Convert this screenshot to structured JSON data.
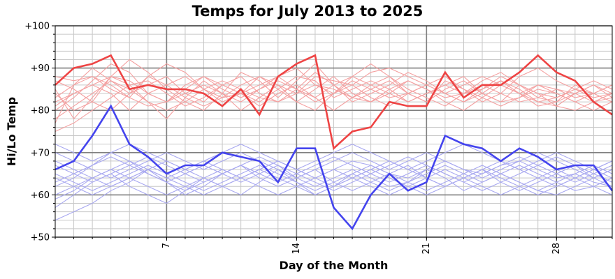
{
  "chart_data": {
    "type": "line",
    "title": "Temps for July 2013 to 2025",
    "xlabel": "Day of the Month",
    "ylabel": "Hi/Lo Temp",
    "xlim": [
      1,
      31
    ],
    "ylim": [
      50,
      100
    ],
    "x_ticks": [
      {
        "value": 7,
        "label": "7"
      },
      {
        "value": 14,
        "label": "14"
      },
      {
        "value": 21,
        "label": "21"
      },
      {
        "value": 28,
        "label": "28"
      }
    ],
    "y_ticks": [
      {
        "value": 50,
        "label": "+50"
      },
      {
        "value": 60,
        "label": "+60"
      },
      {
        "value": 70,
        "label": "+70"
      },
      {
        "value": 80,
        "label": "+80"
      },
      {
        "value": 90,
        "label": "+90"
      },
      {
        "value": 100,
        "label": "+100"
      }
    ],
    "grid": true,
    "colors": {
      "highlight_high": "#ee4444",
      "highlight_low": "#4444ee",
      "background_high": "#f4a0a0",
      "background_low": "#a8a8f0",
      "major_grid": "#808080",
      "minor_grid": "#c8c8c8"
    },
    "x": [
      1,
      2,
      3,
      4,
      5,
      6,
      7,
      8,
      9,
      10,
      11,
      12,
      13,
      14,
      15,
      16,
      17,
      18,
      19,
      20,
      21,
      22,
      23,
      24,
      25,
      26,
      27,
      28,
      29,
      30,
      31
    ],
    "series": [
      {
        "role": "highlight-high",
        "values": [
          86,
          90,
          91,
          93,
          85,
          86,
          85,
          85,
          84,
          81,
          85,
          79,
          88,
          91,
          93,
          71,
          75,
          76,
          82,
          81,
          81,
          89,
          83,
          86,
          86,
          89,
          93,
          89,
          87,
          82,
          79
        ]
      },
      {
        "role": "highlight-low",
        "values": [
          66,
          68,
          74,
          81,
          72,
          69,
          65,
          67,
          67,
          70,
          69,
          68,
          63,
          71,
          71,
          57,
          52,
          60,
          65,
          61,
          63,
          74,
          72,
          71,
          68,
          71,
          69,
          66,
          67,
          67,
          61
        ]
      },
      {
        "role": "background-high",
        "values": [
          88,
          87,
          88,
          85,
          83,
          88,
          91,
          89,
          85,
          82,
          84,
          88,
          86,
          84,
          88,
          87,
          86,
          89,
          90,
          88,
          86,
          84,
          86,
          88,
          86,
          84,
          86,
          85,
          83,
          84,
          86
        ]
      },
      {
        "role": "background-high",
        "values": [
          84,
          80,
          82,
          88,
          92,
          89,
          85,
          82,
          80,
          84,
          89,
          87,
          83,
          87,
          91,
          86,
          83,
          85,
          87,
          84,
          82,
          87,
          85,
          82,
          84,
          88,
          90,
          87,
          85,
          83,
          84
        ]
      },
      {
        "role": "background-high",
        "values": [
          80,
          83,
          87,
          91,
          89,
          84,
          82,
          86,
          88,
          85,
          83,
          85,
          88,
          90,
          86,
          84,
          88,
          91,
          88,
          85,
          83,
          81,
          84,
          87,
          89,
          86,
          84,
          83,
          85,
          87,
          85
        ]
      },
      {
        "role": "background-high",
        "values": [
          77,
          86,
          90,
          87,
          84,
          86,
          88,
          84,
          82,
          86,
          88,
          84,
          82,
          85,
          89,
          86,
          82,
          84,
          86,
          89,
          87,
          84,
          82,
          85,
          88,
          86,
          83,
          82,
          84,
          86,
          83
        ]
      },
      {
        "role": "background-high",
        "values": [
          82,
          84,
          86,
          84,
          80,
          84,
          86,
          88,
          85,
          83,
          84,
          82,
          85,
          88,
          87,
          83,
          85,
          87,
          85,
          82,
          84,
          86,
          88,
          84,
          82,
          83,
          86,
          84,
          82,
          80,
          82
        ]
      },
      {
        "role": "background-high",
        "values": [
          85,
          78,
          83,
          88,
          86,
          82,
          78,
          83,
          87,
          84,
          80,
          83,
          86,
          82,
          85,
          88,
          84,
          82,
          84,
          87,
          85,
          82,
          80,
          83,
          86,
          84,
          81,
          82,
          86,
          84,
          82
        ]
      },
      {
        "role": "background-high",
        "values": [
          75,
          77,
          80,
          83,
          86,
          87,
          84,
          81,
          83,
          86,
          84,
          81,
          84,
          86,
          83,
          80,
          83,
          86,
          88,
          84,
          82,
          85,
          87,
          84,
          82,
          86,
          84,
          81,
          80,
          82,
          84
        ]
      },
      {
        "role": "background-high",
        "values": [
          83,
          86,
          88,
          86,
          83,
          81,
          82,
          85,
          88,
          86,
          84,
          86,
          88,
          85,
          82,
          84,
          86,
          83,
          81,
          84,
          86,
          88,
          85,
          83,
          81,
          83,
          85,
          84,
          82,
          84,
          86
        ]
      },
      {
        "role": "background-high",
        "values": [
          78,
          81,
          84,
          87,
          85,
          82,
          80,
          82,
          85,
          87,
          85,
          83,
          82,
          84,
          86,
          85,
          83,
          82,
          85,
          87,
          85,
          83,
          84,
          86,
          84,
          82,
          83,
          85,
          84,
          82,
          83
        ]
      },
      {
        "role": "background-high",
        "values": [
          87,
          85,
          82,
          80,
          84,
          88,
          86,
          83,
          81,
          83,
          86,
          88,
          85,
          82,
          80,
          84,
          87,
          85,
          83,
          84,
          86,
          84,
          82,
          84,
          87,
          85,
          82,
          81,
          84,
          86,
          84
        ]
      },
      {
        "role": "background-high",
        "values": [
          81,
          84,
          86,
          88,
          87,
          84,
          82,
          84,
          86,
          84,
          82,
          85,
          87,
          85,
          83,
          86,
          88,
          86,
          84,
          82,
          84,
          86,
          84,
          85,
          87,
          84,
          82,
          83,
          85,
          84,
          82
        ]
      },
      {
        "role": "background-low",
        "values": [
          62,
          64,
          67,
          70,
          68,
          66,
          64,
          66,
          68,
          66,
          64,
          66,
          68,
          66,
          64,
          66,
          68,
          67,
          65,
          64,
          66,
          68,
          66,
          65,
          67,
          68,
          66,
          64,
          65,
          63,
          62
        ]
      },
      {
        "role": "background-low",
        "values": [
          59,
          61,
          64,
          66,
          68,
          65,
          63,
          65,
          67,
          65,
          63,
          65,
          67,
          64,
          62,
          64,
          66,
          64,
          62,
          63,
          65,
          67,
          65,
          63,
          65,
          67,
          65,
          63,
          61,
          62,
          64
        ]
      },
      {
        "role": "background-low",
        "values": [
          67,
          65,
          63,
          65,
          67,
          69,
          67,
          65,
          63,
          65,
          67,
          65,
          63,
          65,
          67,
          69,
          67,
          65,
          63,
          65,
          67,
          65,
          63,
          65,
          67,
          69,
          67,
          65,
          63,
          65,
          67
        ]
      },
      {
        "role": "background-low",
        "values": [
          70,
          68,
          66,
          64,
          66,
          68,
          70,
          68,
          66,
          68,
          70,
          68,
          66,
          64,
          66,
          68,
          70,
          68,
          66,
          68,
          70,
          68,
          66,
          64,
          66,
          68,
          70,
          68,
          66,
          64,
          66
        ]
      },
      {
        "role": "background-low",
        "values": [
          63,
          65,
          67,
          69,
          67,
          65,
          63,
          61,
          63,
          65,
          67,
          69,
          67,
          65,
          63,
          61,
          63,
          65,
          67,
          69,
          67,
          65,
          63,
          61,
          63,
          65,
          67,
          69,
          67,
          65,
          63
        ]
      },
      {
        "role": "background-low",
        "values": [
          57,
          60,
          63,
          65,
          62,
          60,
          58,
          61,
          64,
          62,
          60,
          63,
          66,
          63,
          60,
          62,
          65,
          63,
          61,
          63,
          66,
          64,
          61,
          63,
          65,
          63,
          61,
          60,
          62,
          64,
          66
        ]
      },
      {
        "role": "background-low",
        "values": [
          72,
          70,
          68,
          70,
          72,
          70,
          68,
          66,
          68,
          70,
          72,
          70,
          68,
          66,
          68,
          70,
          72,
          70,
          68,
          66,
          68,
          70,
          72,
          70,
          68,
          66,
          68,
          70,
          68,
          66,
          68
        ]
      },
      {
        "role": "background-low",
        "values": [
          65,
          63,
          61,
          63,
          65,
          67,
          65,
          63,
          61,
          63,
          65,
          67,
          65,
          63,
          61,
          63,
          65,
          67,
          65,
          63,
          61,
          63,
          65,
          67,
          65,
          63,
          61,
          63,
          65,
          67,
          65
        ]
      },
      {
        "role": "background-low",
        "values": [
          60,
          62,
          64,
          66,
          64,
          62,
          60,
          62,
          64,
          66,
          64,
          62,
          60,
          62,
          64,
          66,
          64,
          62,
          60,
          62,
          64,
          66,
          64,
          62,
          60,
          62,
          64,
          66,
          64,
          62,
          60
        ]
      },
      {
        "role": "background-low",
        "values": [
          68,
          66,
          64,
          62,
          64,
          66,
          68,
          66,
          64,
          62,
          64,
          66,
          68,
          66,
          64,
          62,
          64,
          66,
          68,
          66,
          64,
          62,
          64,
          66,
          68,
          66,
          64,
          62,
          64,
          66,
          68
        ]
      },
      {
        "role": "background-low",
        "values": [
          54,
          56,
          58,
          61,
          63,
          66,
          63,
          60,
          62,
          65,
          67,
          64,
          62,
          64,
          66,
          63,
          61,
          63,
          65,
          67,
          64,
          62,
          64,
          66,
          63,
          61,
          63,
          65,
          67,
          64,
          62
        ]
      },
      {
        "role": "background-low",
        "values": [
          64,
          62,
          60,
          62,
          64,
          66,
          64,
          62,
          60,
          62,
          64,
          66,
          64,
          62,
          60,
          62,
          64,
          66,
          64,
          62,
          60,
          62,
          64,
          66,
          64,
          62,
          60,
          62,
          64,
          66,
          64
        ]
      }
    ]
  }
}
